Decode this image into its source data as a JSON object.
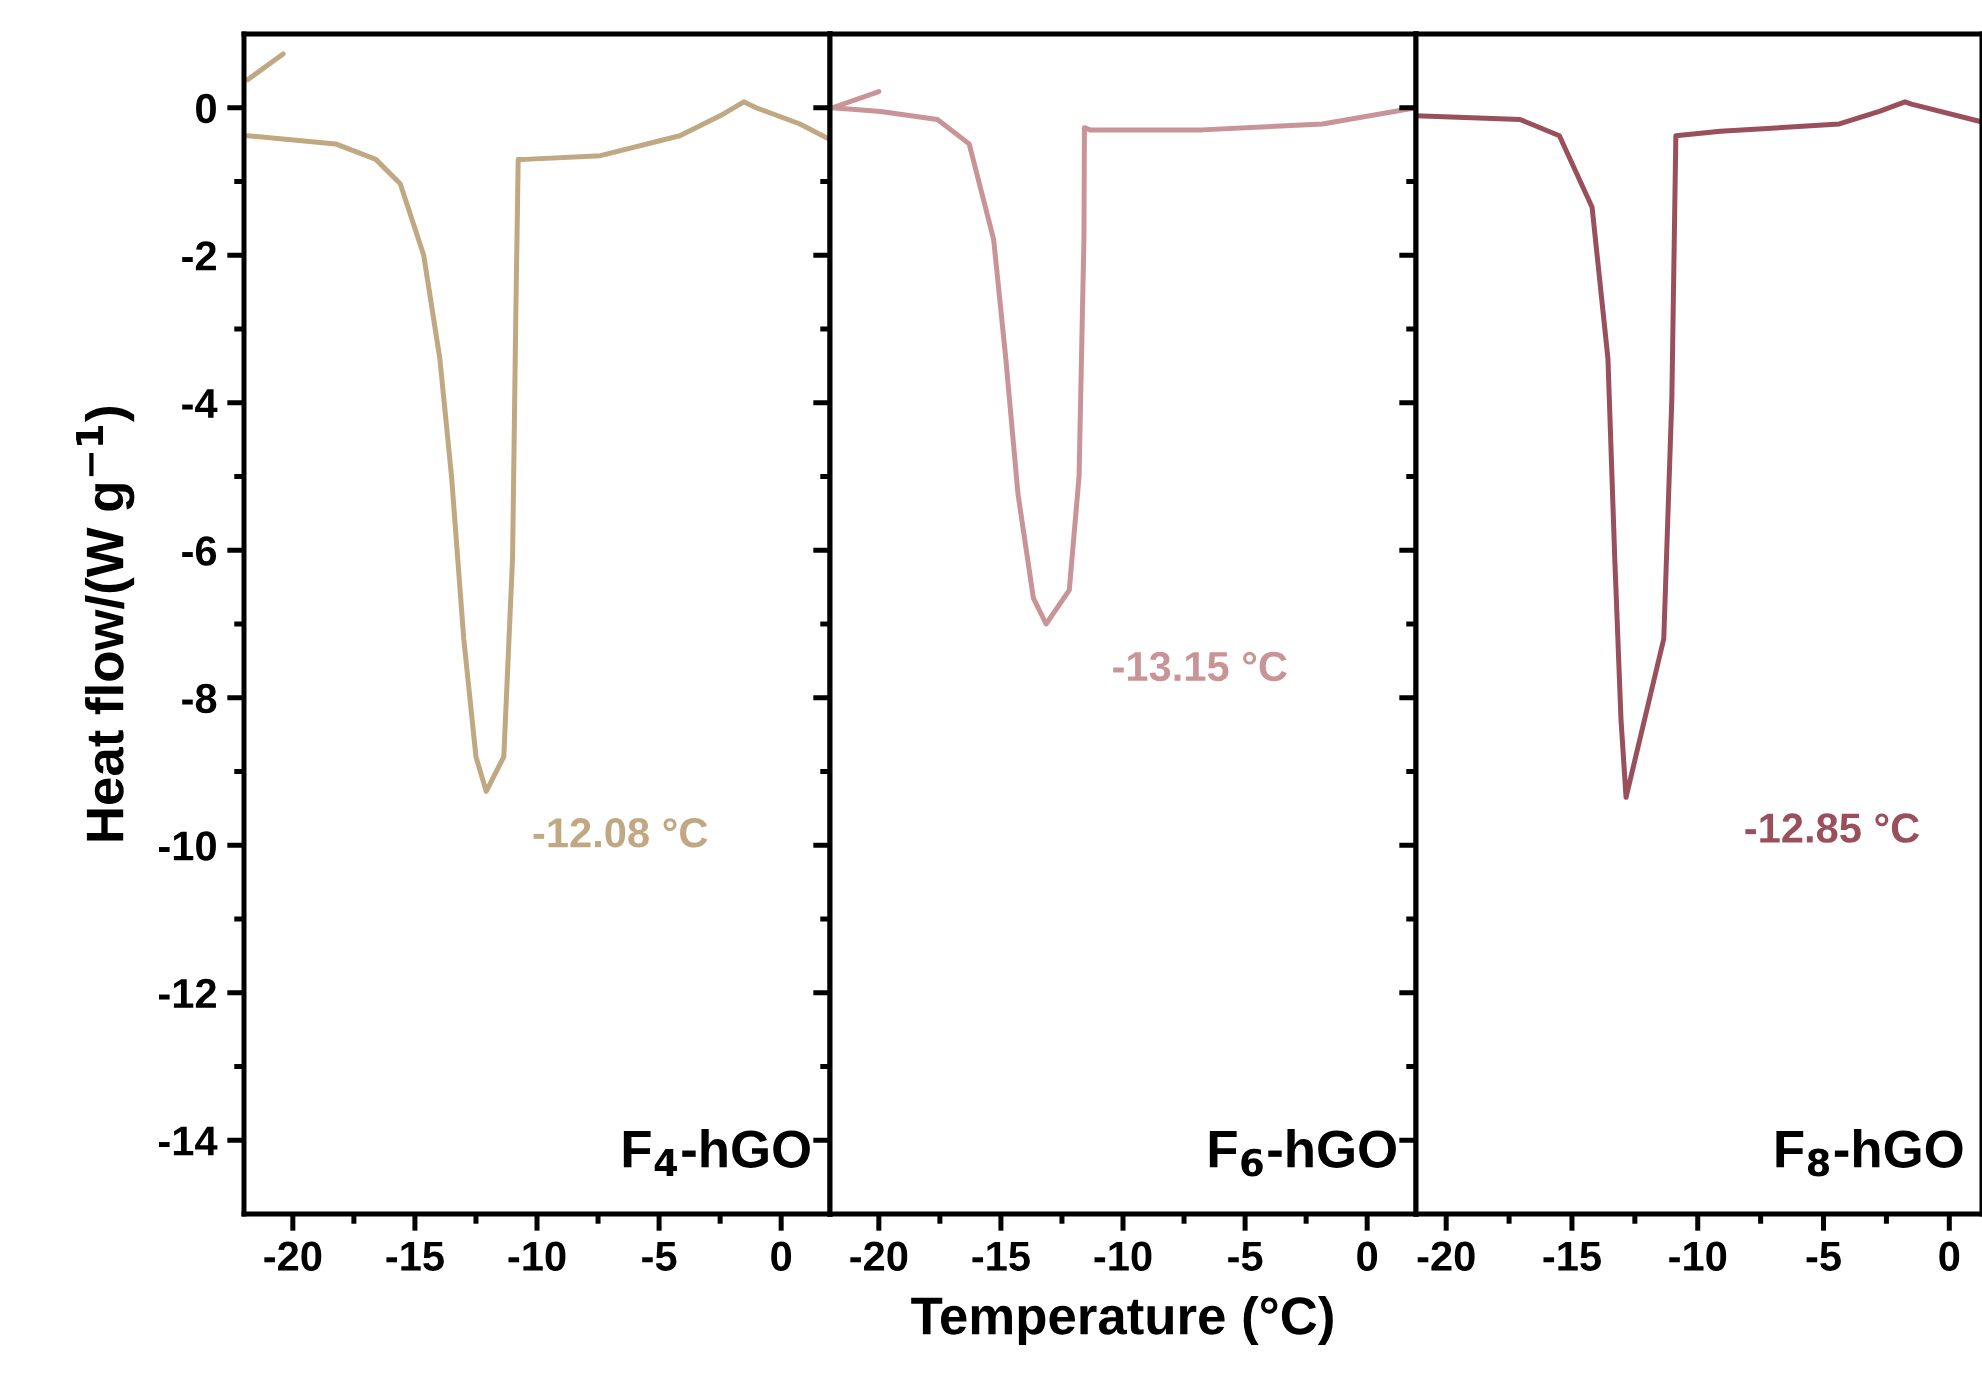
{
  "chart_data": [
    {
      "type": "line",
      "ylabel": "Heat flow/(W g$^{−1}$)",
      "xlim": [
        -22,
        2
      ],
      "ylim": [
        -15,
        1
      ],
      "xticks": [
        -20,
        {
          "value": -17.5,
          "label": null
        },
        -15,
        {
          "value": -12.5,
          "label": null
        },
        -10,
        {
          "value": -7.5,
          "label": null
        },
        -5,
        {
          "value": -2.5,
          "label": null
        },
        0
      ],
      "yticks": [
        -14,
        {
          "value": -13,
          "label": null
        },
        -12,
        {
          "value": -11,
          "label": null
        },
        -10,
        {
          "value": -9,
          "label": null
        },
        -8,
        {
          "value": -7,
          "label": null
        },
        -6,
        {
          "value": -5,
          "label": null
        },
        -4,
        {
          "value": -3,
          "label": null
        },
        -2,
        {
          "value": -1,
          "label": null
        },
        0
      ],
      "annotations": [
        "F$_{4}$-hGO",
        "-12.08 °C"
      ],
      "series": [
        {
          "color": "#bfa882",
          "x": [
            -21.85,
            -20.4
          ],
          "values": [
            0.38,
            0.73
          ]
        },
        {
          "color": "#bfa882",
          "x": [
            -21.84,
            -18.25,
            -16.6,
            -15.6,
            -14.64,
            -13.98,
            -13.5,
            -13.0,
            -12.5,
            -12.08,
            -11.36,
            -11.0,
            -10.87,
            -10.77,
            -10.5,
            -7.4,
            -4.15,
            -2.5,
            -1.53,
            -1.03,
            0.77,
            2.0
          ],
          "values": [
            -0.38,
            -0.49,
            -0.7,
            -1.03,
            -2.0,
            -3.4,
            -5.0,
            -7.2,
            -8.8,
            -9.27,
            -8.8,
            -6.1,
            -2.86,
            -0.7,
            -0.7,
            -0.65,
            -0.38,
            -0.11,
            0.08,
            0.0,
            -0.22,
            -0.43
          ]
        }
      ]
    },
    {
      "type": "line",
      "xlabel": "Temperature (°C)",
      "tick_labels": "x",
      "xlim": [
        -22,
        2
      ],
      "ylim": [
        -15,
        1
      ],
      "xticks": [
        -20,
        {
          "value": -17.5,
          "label": null
        },
        -15,
        {
          "value": -12.5,
          "label": null
        },
        -10,
        {
          "value": -7.5,
          "label": null
        },
        -5,
        {
          "value": -2.5,
          "label": null
        },
        0
      ],
      "yticks": [
        -14,
        {
          "value": -13,
          "label": null
        },
        -12,
        {
          "value": -11,
          "label": null
        },
        -10,
        {
          "value": -9,
          "label": null
        },
        -8,
        {
          "value": -7,
          "label": null
        },
        -6,
        {
          "value": -5,
          "label": null
        },
        -4,
        {
          "value": -3,
          "label": null
        },
        -2,
        {
          "value": -1,
          "label": null
        },
        0
      ],
      "annotations": [
        "F$_{6}$-hGO",
        "-13.15 °C"
      ],
      "series": [
        {
          "color": "#c99497",
          "x": [
            -21.9,
            -20.0
          ],
          "values": [
            0.0,
            0.22
          ]
        },
        {
          "color": "#c99497",
          "x": [
            -21.9,
            -19.92,
            -17.6,
            -16.3,
            -15.3,
            -14.8,
            -14.3,
            -13.67,
            -13.15,
            -12.2,
            -11.8,
            -11.6,
            -11.58,
            -11.35,
            -6.76,
            -1.83,
            2.0
          ],
          "values": [
            0.0,
            -0.05,
            -0.16,
            -0.49,
            -1.78,
            -3.4,
            -5.24,
            -6.65,
            -7.0,
            -6.54,
            -5.0,
            -1.78,
            -0.27,
            -0.3,
            -0.3,
            -0.22,
            0.0
          ]
        }
      ]
    },
    {
      "type": "line",
      "tick_labels": "x",
      "xlim": [
        -21.2,
        1.3
      ],
      "ylim": [
        -15,
        1
      ],
      "xticks": [
        -20,
        {
          "value": -17.5,
          "label": null
        },
        -15,
        {
          "value": -12.5,
          "label": null
        },
        -10,
        {
          "value": -7.5,
          "label": null
        },
        -5,
        {
          "value": -2.5,
          "label": null
        },
        0
      ],
      "yticks": [
        -14,
        {
          "value": -13,
          "label": null
        },
        -12,
        {
          "value": -11,
          "label": null
        },
        -10,
        {
          "value": -9,
          "label": null
        },
        -8,
        {
          "value": -7,
          "label": null
        },
        -6,
        {
          "value": -5,
          "label": null
        },
        -4,
        {
          "value": -3,
          "label": null
        },
        -2,
        {
          "value": -1,
          "label": null
        },
        0
      ],
      "annotations": [
        "F$_{8}$-hGO",
        "-12.85 °C"
      ],
      "series": [
        {
          "color": "#9a4f5c",
          "x": [
            -21.2,
            -17.06,
            -15.5,
            -14.2,
            -13.57,
            -13.3,
            -13.05,
            -12.85,
            -11.35,
            -11.03,
            -10.87,
            -9.1,
            -4.37,
            -2.78,
            -1.76,
            -1.5,
            1.27
          ],
          "values": [
            -0.11,
            -0.16,
            -0.38,
            -1.35,
            -3.4,
            -6.1,
            -8.3,
            -9.35,
            -7.2,
            -3.95,
            -0.38,
            -0.32,
            -0.22,
            -0.05,
            0.08,
            0.05,
            -0.19
          ]
        }
      ]
    }
  ]
}
